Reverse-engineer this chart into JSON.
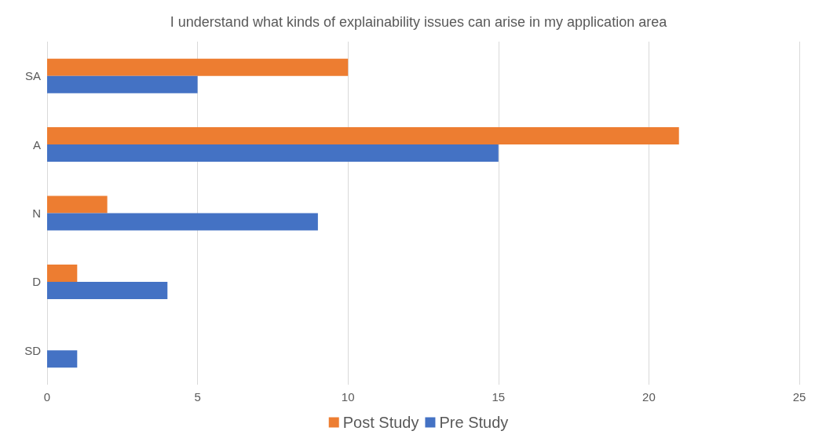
{
  "chart_data": {
    "type": "bar",
    "orientation": "horizontal",
    "title": "I understand what kinds of explainability issues can arise in my application area",
    "categories": [
      "SA",
      "A",
      "N",
      "D",
      "SD"
    ],
    "series": [
      {
        "name": "Post Study",
        "color": "#ed7d31",
        "values": [
          10,
          21,
          2,
          1,
          0
        ]
      },
      {
        "name": "Pre Study",
        "color": "#4472c4",
        "values": [
          5,
          15,
          9,
          4,
          1
        ]
      }
    ],
    "xlim": [
      0,
      25
    ],
    "xticks": [
      0,
      5,
      10,
      15,
      20,
      25
    ],
    "grid": "x",
    "legend": "bottom"
  }
}
